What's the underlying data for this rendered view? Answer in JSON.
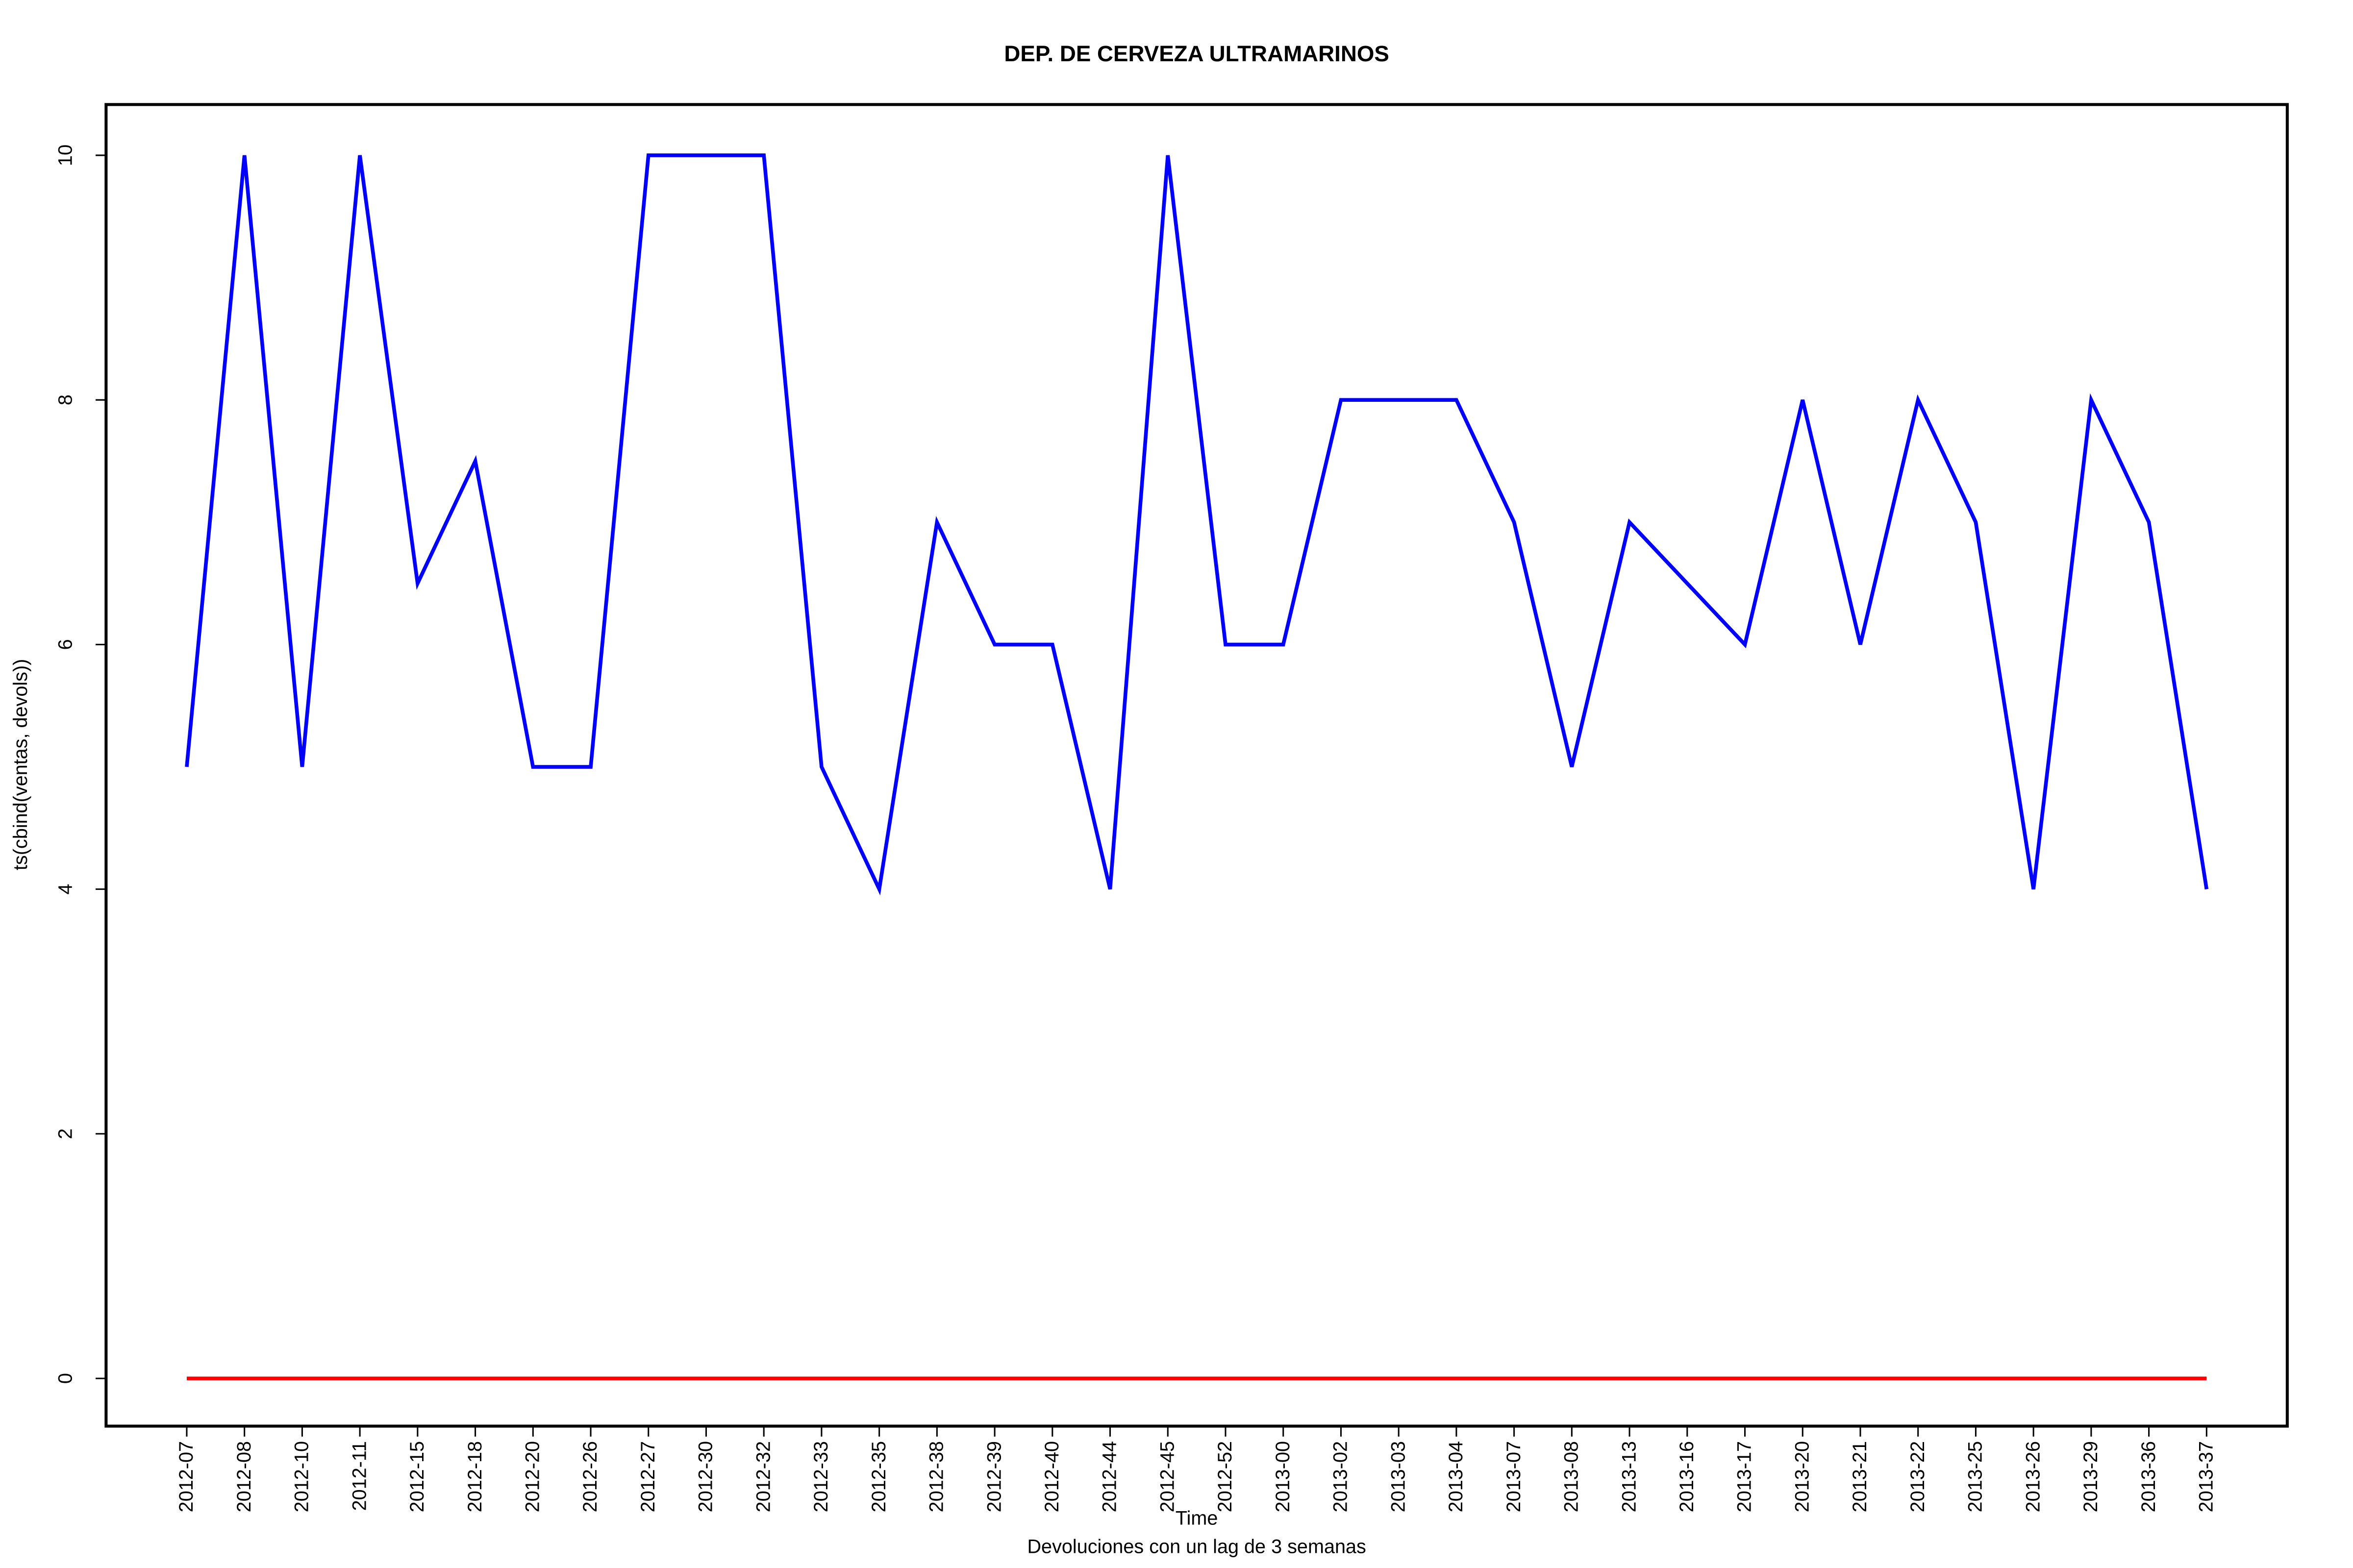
{
  "chart_data": {
    "type": "line",
    "title": "DEP. DE CERVEZA ULTRAMARINOS",
    "y_label": "ts(cbind(ventas, devols))",
    "x_label": "Time",
    "subtitle": "Devoluciones con un lag de 3 semanas",
    "categories": [
      "2012-07",
      "2012-08",
      "2012-10",
      "2012-11",
      "2012-15",
      "2012-18",
      "2012-20",
      "2012-26",
      "2012-27",
      "2012-30",
      "2012-32",
      "2012-33",
      "2012-35",
      "2012-38",
      "2012-39",
      "2012-40",
      "2012-44",
      "2012-45",
      "2012-52",
      "2013-00",
      "2013-02",
      "2013-03",
      "2013-04",
      "2013-07",
      "2013-08",
      "2013-13",
      "2013-16",
      "2013-17",
      "2013-20",
      "2013-21",
      "2013-22",
      "2013-25",
      "2013-26",
      "2013-29",
      "2013-36",
      "2013-37"
    ],
    "series": [
      {
        "color": "#0000ff",
        "values": [
          5,
          10,
          5,
          10,
          6.5,
          7.5,
          5,
          5,
          10,
          10,
          10,
          5,
          4,
          7,
          6,
          6,
          4,
          10,
          6,
          6,
          8,
          8,
          8,
          7,
          5,
          7,
          6.5,
          6,
          8,
          6,
          8,
          7,
          4,
          8,
          7,
          4
        ]
      },
      {
        "color": "#ff0000",
        "values": [
          0,
          0,
          0,
          0,
          0,
          0,
          0,
          0,
          0,
          0,
          0,
          0,
          0,
          0,
          0,
          0,
          0,
          0,
          0,
          0,
          0,
          0,
          0,
          0,
          0,
          0,
          0,
          0,
          0,
          0,
          0,
          0,
          0,
          0,
          0,
          0
        ]
      }
    ],
    "ylim": [
      -0.39,
      10.415
    ],
    "yticks": [
      0,
      2,
      4,
      6,
      8,
      10
    ],
    "grid": false
  }
}
